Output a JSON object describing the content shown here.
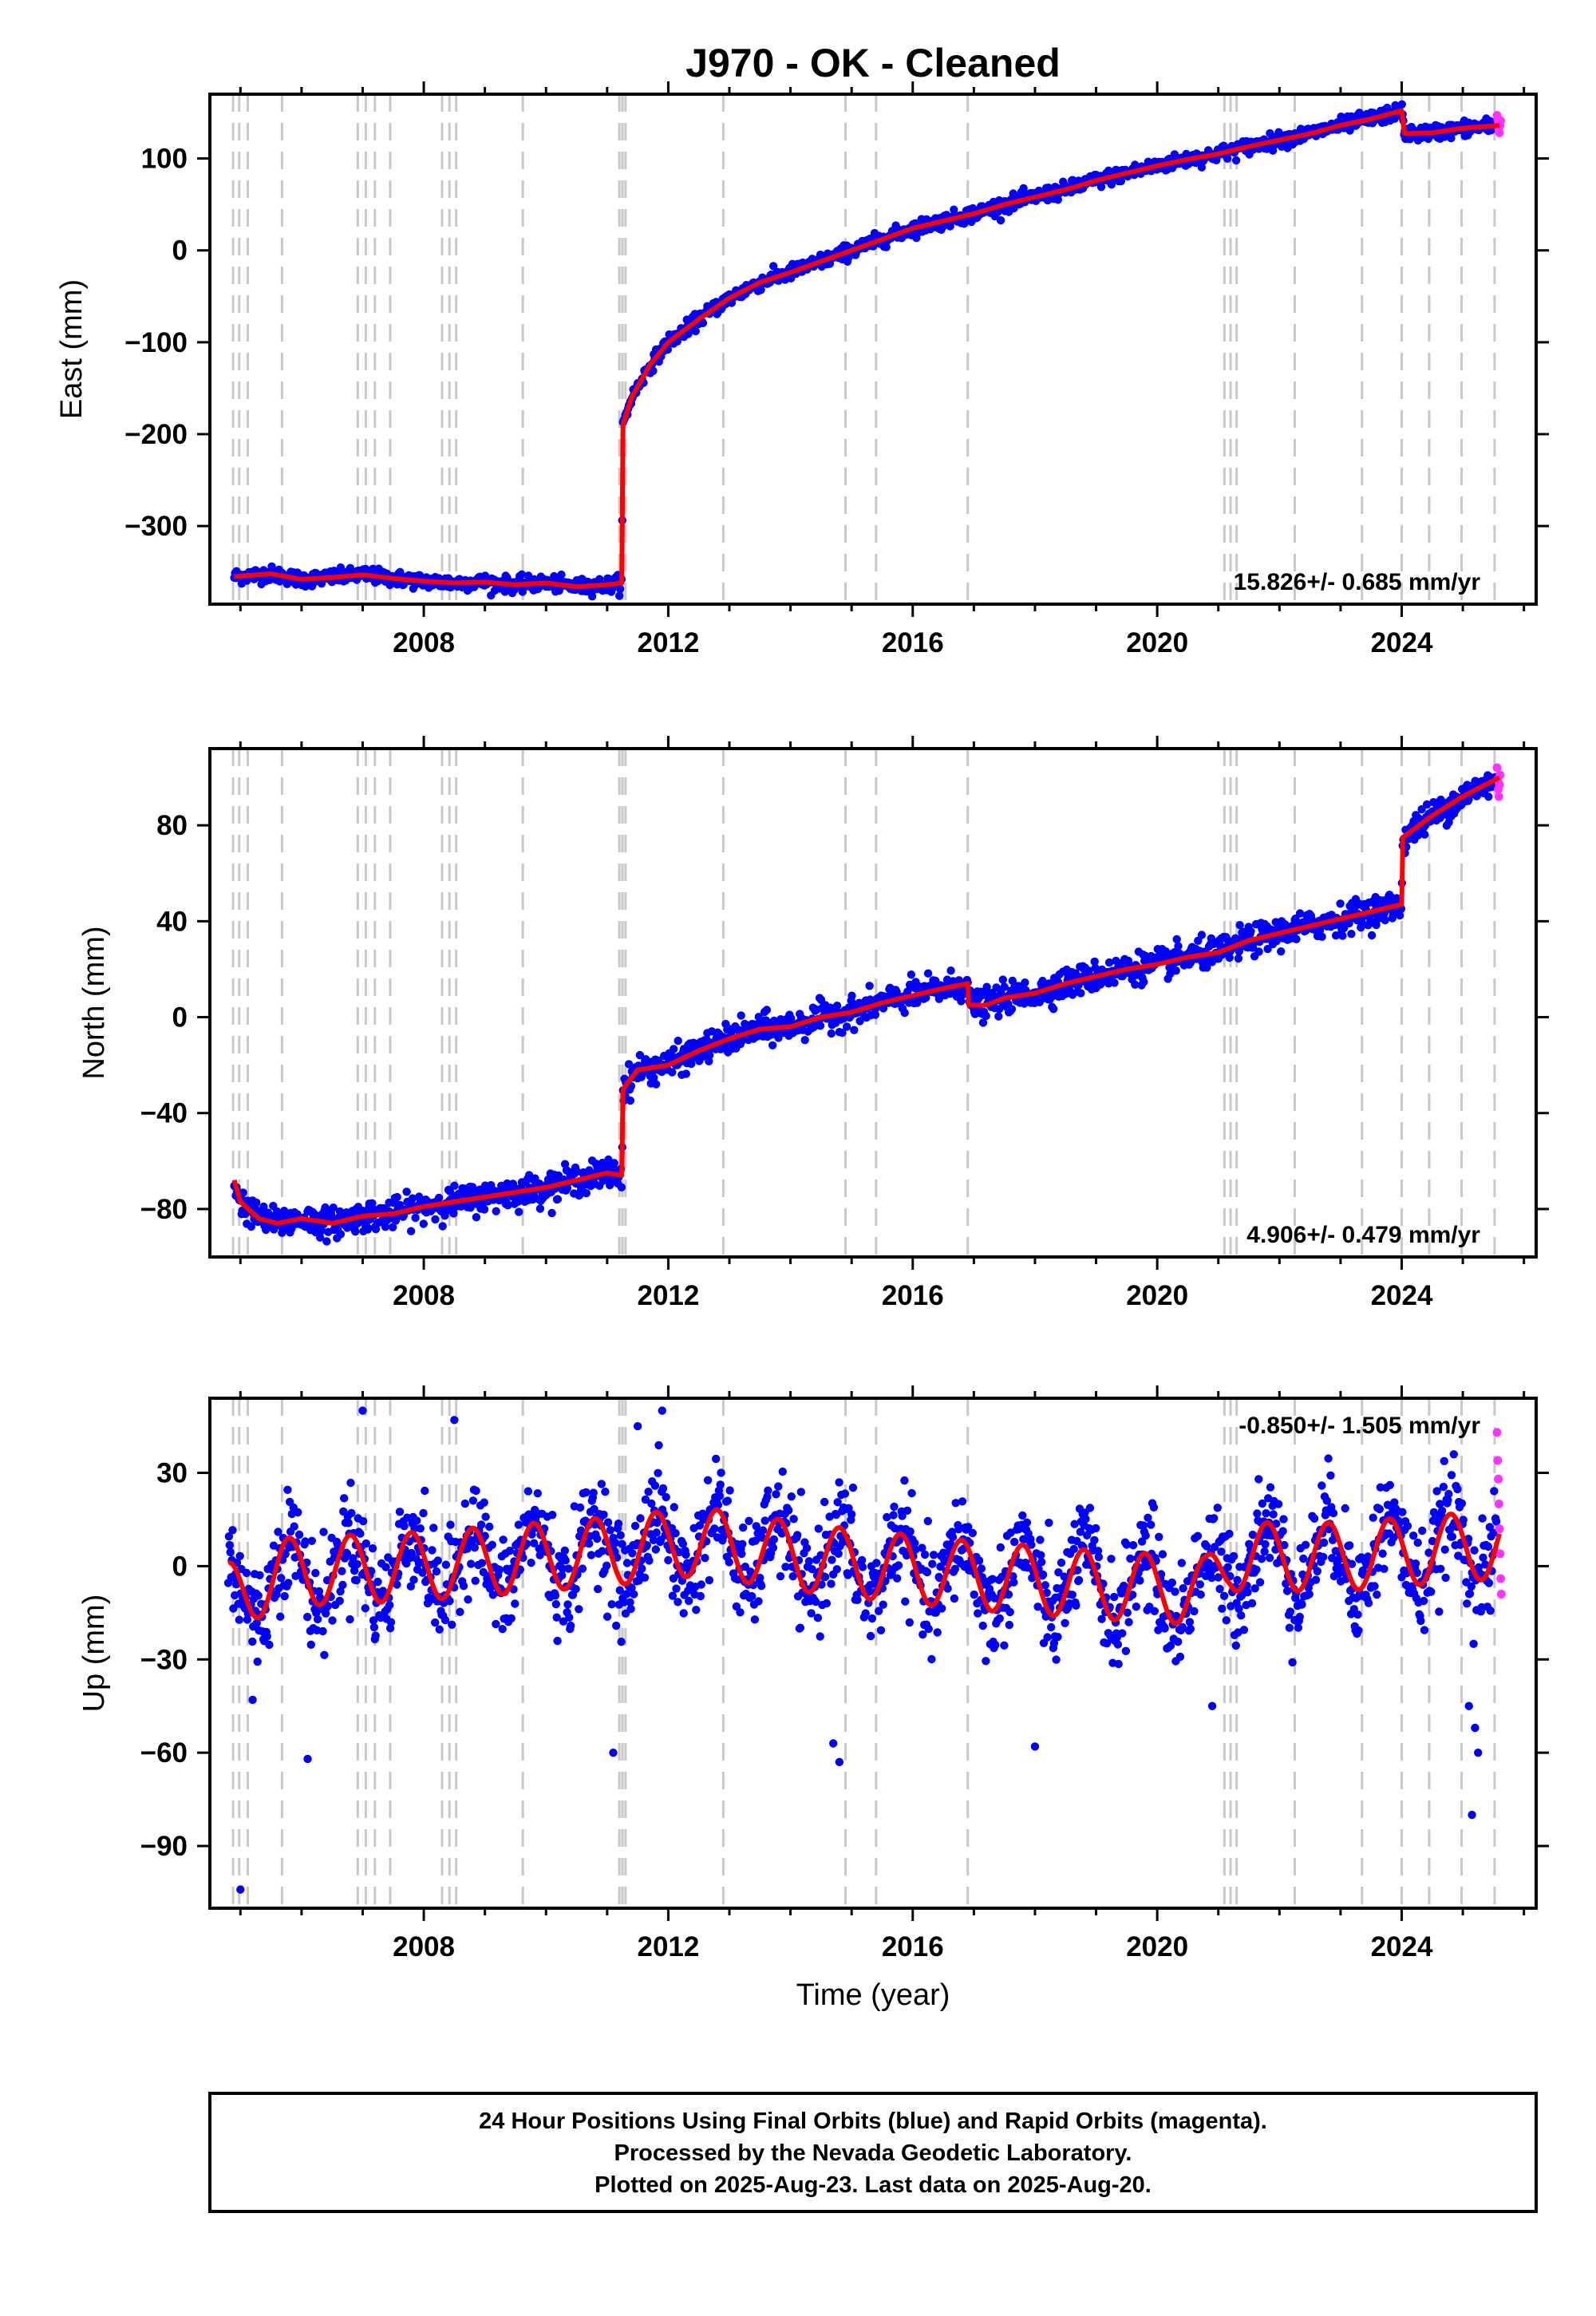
{
  "title": "J970  - OK - Cleaned",
  "footer": {
    "line1": "24 Hour Positions Using Final Orbits (blue) and Rapid Orbits (magenta).",
    "line2": "Processed by the Nevada Geodetic Laboratory.",
    "line3": "Plotted on 2025-Aug-23. Last data on 2025-Aug-20."
  },
  "colors": {
    "final": "#0000ff",
    "rapid": "#ff33ff",
    "model": "#ff0000",
    "steps": "#c8c8c8"
  },
  "chart_data": [
    {
      "type": "scatter",
      "name": "east",
      "title": "",
      "xlabel": "",
      "ylabel": "East (mm)",
      "xlim": [
        2004.5,
        2026.2
      ],
      "ylim": [
        -385,
        170
      ],
      "x_ticks": [
        2008,
        2012,
        2016,
        2020,
        2024
      ],
      "x_tick_labels": [
        "2008",
        "2012",
        "2016",
        "2020",
        "2024"
      ],
      "y_ticks": [
        100,
        0,
        -100,
        -200,
        -300
      ],
      "y_tick_labels": [
        "100",
        "0",
        "−100",
        "−200",
        "−300"
      ],
      "rate_label": "15.826+/- 0.685 mm/yr",
      "rate_position": "bottom-right",
      "model_x": [
        2004.9,
        2005.5,
        2006,
        2006.5,
        2007,
        2007.5,
        2008,
        2008.5,
        2009,
        2009.5,
        2010,
        2010.5,
        2011.0,
        2011.24,
        2011.26,
        2011.4,
        2011.7,
        2012.0,
        2012.5,
        2013.0,
        2013.5,
        2014.0,
        2014.5,
        2015.0,
        2015.5,
        2016.0,
        2016.5,
        2017.0,
        2017.5,
        2018.0,
        2018.5,
        2019.0,
        2019.5,
        2020.0,
        2020.5,
        2021.0,
        2021.5,
        2022.0,
        2022.5,
        2023.0,
        2023.5,
        2024.0,
        2024.05,
        2024.5,
        2025.0,
        2025.6
      ],
      "model_y": [
        -355,
        -352,
        -358,
        -356,
        -353,
        -357,
        -360,
        -362,
        -361,
        -364,
        -362,
        -366,
        -364,
        -362,
        -190,
        -160,
        -125,
        -100,
        -75,
        -52,
        -35,
        -24,
        -12,
        0,
        12,
        24,
        32,
        40,
        50,
        58,
        66,
        76,
        84,
        92,
        99,
        105,
        113,
        120,
        127,
        136,
        143,
        152,
        127,
        128,
        133,
        136
      ],
      "point_sigma": 4,
      "rapid_points": [
        [
          2025.56,
          147
        ],
        [
          2025.57,
          143
        ],
        [
          2025.58,
          138
        ],
        [
          2025.59,
          132
        ],
        [
          2025.6,
          128
        ],
        [
          2025.61,
          136
        ],
        [
          2025.62,
          141
        ]
      ]
    },
    {
      "type": "scatter",
      "name": "north",
      "title": "",
      "xlabel": "",
      "ylabel": "North (mm)",
      "xlim": [
        2004.5,
        2026.2
      ],
      "ylim": [
        -100,
        112
      ],
      "x_ticks": [
        2008,
        2012,
        2016,
        2020,
        2024
      ],
      "x_tick_labels": [
        "2008",
        "2012",
        "2016",
        "2020",
        "2024"
      ],
      "y_ticks": [
        80,
        40,
        0,
        -40,
        -80
      ],
      "y_tick_labels": [
        "80",
        "40",
        "0",
        "−40",
        "−80"
      ],
      "rate_label": "4.906+/- 0.479 mm/yr",
      "rate_position": "bottom-right",
      "model_x": [
        2004.9,
        2005.0,
        2005.3,
        2005.6,
        2006,
        2006.5,
        2007,
        2007.5,
        2008,
        2008.5,
        2009,
        2009.5,
        2010,
        2010.5,
        2011.0,
        2011.24,
        2011.26,
        2011.5,
        2012,
        2012.5,
        2013,
        2013.5,
        2014,
        2014.5,
        2015,
        2015.5,
        2016,
        2016.5,
        2016.9,
        2016.92,
        2017.2,
        2017.5,
        2018,
        2018.5,
        2019,
        2019.5,
        2020,
        2020.5,
        2021,
        2021.5,
        2022,
        2022.5,
        2023,
        2023.5,
        2024.0,
        2024.02,
        2024.5,
        2025.0,
        2025.6
      ],
      "model_y": [
        -68,
        -77,
        -84,
        -86,
        -84,
        -86,
        -83,
        -82,
        -79,
        -77,
        -75,
        -73,
        -71,
        -68,
        -65,
        -66,
        -30,
        -22,
        -20,
        -14,
        -9,
        -5,
        -4,
        0,
        2,
        6,
        9,
        12,
        14,
        5,
        5,
        8,
        10,
        14,
        17,
        20,
        22,
        25,
        27,
        32,
        35,
        38,
        41,
        44,
        47,
        75,
        84,
        92,
        100
      ],
      "point_sigma": 3,
      "rapid_points": [
        [
          2025.56,
          104
        ],
        [
          2025.57,
          99
        ],
        [
          2025.58,
          95
        ],
        [
          2025.59,
          92
        ],
        [
          2025.6,
          97
        ],
        [
          2025.61,
          101
        ]
      ]
    },
    {
      "type": "scatter",
      "name": "up",
      "title": "",
      "xlabel": "Time (year)",
      "ylabel": "Up (mm)",
      "xlim": [
        2004.5,
        2026.2
      ],
      "ylim": [
        -110,
        54
      ],
      "x_ticks": [
        2008,
        2012,
        2016,
        2020,
        2024
      ],
      "x_tick_labels": [
        "2008",
        "2012",
        "2016",
        "2020",
        "2024"
      ],
      "y_ticks": [
        30,
        0,
        -30,
        -60,
        -90
      ],
      "y_tick_labels": [
        "30",
        "0",
        "−30",
        "−60",
        "−90"
      ],
      "rate_label": "-0.850+/- 1.505 mm/yr",
      "rate_position": "top-right",
      "seasonal": {
        "trend_x": [
          2004.8,
          2005.7,
          2008.0,
          2011.2,
          2012.5,
          2014.5,
          2017.0,
          2019.0,
          2020.8,
          2021.2,
          2023.0,
          2025.6
        ],
        "trend_y": [
          -10,
          -2,
          0,
          5,
          8,
          2,
          -3,
          -6,
          -8,
          3,
          3,
          7
        ],
        "amplitude": 11,
        "phase_year": 0.55
      },
      "point_sigma": 8,
      "outliers": [
        [
          2005.0,
          -104
        ],
        [
          2007.0,
          50
        ],
        [
          2011.9,
          50
        ],
        [
          2006.1,
          -62
        ],
        [
          2011.1,
          -60
        ],
        [
          2005.2,
          -43
        ],
        [
          2014.8,
          -63
        ],
        [
          2014.7,
          -57
        ],
        [
          2020.9,
          -45
        ],
        [
          2025.1,
          -45
        ],
        [
          2025.2,
          -52
        ],
        [
          2025.25,
          -60
        ],
        [
          2025.15,
          -80
        ],
        [
          2018.0,
          -58
        ],
        [
          2008.5,
          47
        ],
        [
          2011.5,
          45
        ]
      ],
      "rapid_points": [
        [
          2025.56,
          43
        ],
        [
          2025.57,
          34
        ],
        [
          2025.58,
          28
        ],
        [
          2025.59,
          20
        ],
        [
          2025.6,
          12
        ],
        [
          2025.61,
          4
        ],
        [
          2025.62,
          -4
        ],
        [
          2025.63,
          -9
        ]
      ]
    }
  ],
  "step_epochs": [
    2004.88,
    2004.98,
    2005.12,
    2005.68,
    2006.92,
    2007.05,
    2007.2,
    2007.45,
    2008.3,
    2008.42,
    2008.53,
    2009.62,
    2011.2,
    2011.25,
    2011.3,
    2012.9,
    2014.9,
    2015.4,
    2016.9,
    2021.1,
    2021.2,
    2021.3,
    2022.25,
    2023.35,
    2024.0,
    2024.45,
    2024.98,
    2025.52
  ]
}
